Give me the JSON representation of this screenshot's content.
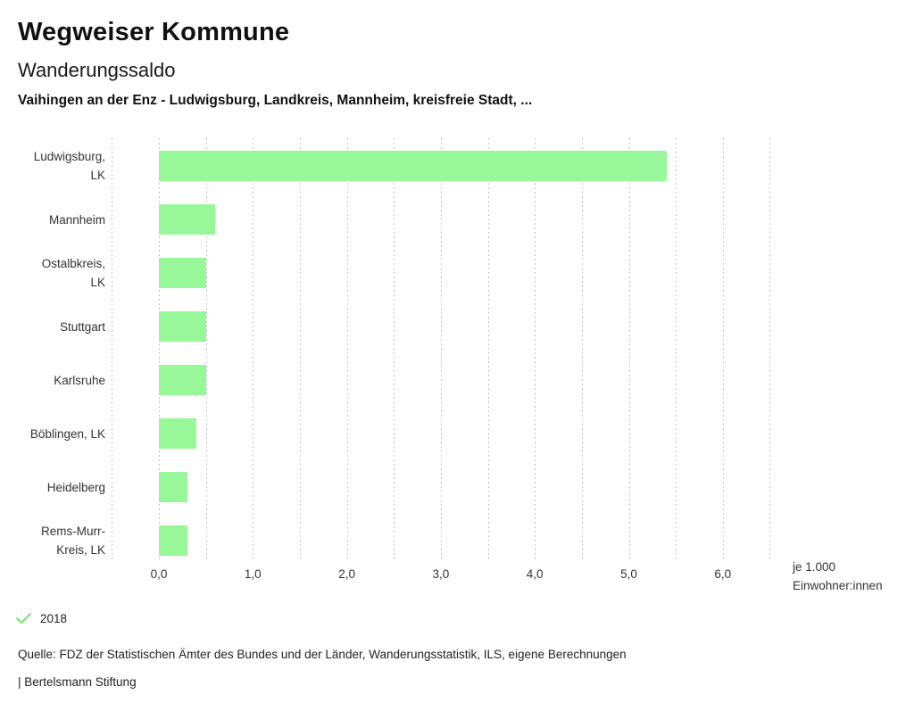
{
  "header": {
    "title": "Wegweiser Kommune",
    "subtitle": "Wanderungssaldo",
    "description": "Vaihingen an der Enz - Ludwigsburg, Landkreis, Mannheim, kreisfreie Stadt, ..."
  },
  "chart_data": {
    "type": "bar",
    "orientation": "horizontal",
    "categories": [
      "Ludwigsburg,\nLK",
      "Mannheim",
      "Ostalbkreis,\nLK",
      "Stuttgart",
      "Karlsruhe",
      "Böblingen, LK",
      "Heidelberg",
      "Rems-Murr-\nKreis, LK"
    ],
    "values": [
      5.4,
      0.6,
      0.5,
      0.5,
      0.5,
      0.4,
      0.3,
      0.3
    ],
    "series_name": "2018",
    "x_ticks": [
      0,
      1,
      2,
      3,
      4,
      5,
      6
    ],
    "x_tick_labels": [
      "0,0",
      "1,0",
      "2,0",
      "3,0",
      "4,0",
      "5,0",
      "6,0"
    ],
    "xlim": [
      -0.5,
      6.5
    ],
    "gridline_step": 0.5,
    "grid": true,
    "unit_label_line1": "je 1.000",
    "unit_label_line2": "Einwohner:innen",
    "bar_color": "#98f798",
    "gridline_color": "#c4c4c4"
  },
  "legend": {
    "year": "2018",
    "check_color": "#8ce48c"
  },
  "footer": {
    "source": "Quelle: FDZ der Statistischen Ämter des Bundes und der Länder, Wanderungsstatistik, ILS, eigene Berechnungen",
    "attribution": "| Bertelsmann Stiftung"
  }
}
